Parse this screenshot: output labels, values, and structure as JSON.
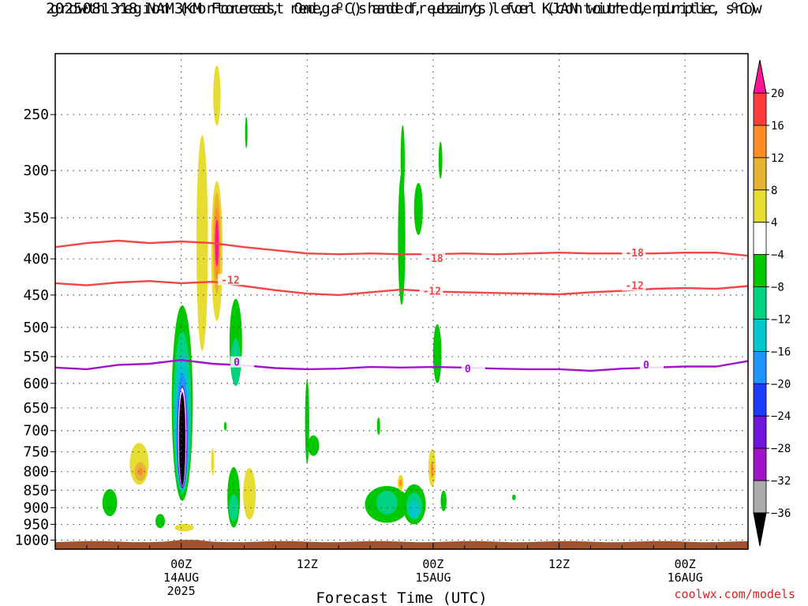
{
  "title_line1": "2025081318 NAM3KM Forecast Omega (shaded, μbar/s) for KJAN with dendritic snow",
  "title_line2": "growth region (contoured, red, ºC) and freezing level (contoured, purple, ºC)",
  "credit": "coolwx.com/models",
  "chart_data": {
    "type": "heatmap",
    "title": "2025081318 NAM3KM Forecast Omega (shaded, μbar/s) for KJAN with dendritic snow growth region (contoured, red, ºC) and freezing level (contoured, purple, ºC)",
    "xlabel": "Forecast Time (UTC)",
    "ylabel": "",
    "x_unit": "hours from 2025-08-13 18Z",
    "xlim": [
      -6,
      60
    ],
    "ylim_hPa": [
      1030,
      205
    ],
    "y_scale": "log",
    "grid": true,
    "x_ticks": [
      {
        "x": 6,
        "lines": [
          "00Z",
          "14AUG",
          "2025"
        ]
      },
      {
        "x": 18,
        "lines": [
          "12Z"
        ]
      },
      {
        "x": 30,
        "lines": [
          "00Z",
          "15AUG"
        ]
      },
      {
        "x": 42,
        "lines": [
          "12Z"
        ]
      },
      {
        "x": 54,
        "lines": [
          "00Z",
          "16AUG"
        ]
      }
    ],
    "y_ticks": [
      250,
      300,
      350,
      400,
      450,
      500,
      550,
      600,
      650,
      700,
      750,
      800,
      850,
      900,
      950,
      1000
    ],
    "colorbar": {
      "labels": [
        "20",
        "16",
        "12",
        "8",
        "4",
        "−4",
        "−8",
        "−12",
        "−16",
        "−20",
        "−24",
        "−28",
        "−32",
        "−36"
      ],
      "colors": [
        "#ff1493",
        "#ff3c3c",
        "#ff8c28",
        "#e6b432",
        "#e6dc32",
        "#ffffff",
        "#00c800",
        "#00d282",
        "#00c8c8",
        "#1e96ff",
        "#1e3cff",
        "#6e14dc",
        "#a014c8",
        "#aaaaaa",
        "#000000"
      ],
      "extend": "both"
    },
    "contours": [
      {
        "name": "-18",
        "color": "#f04646",
        "x": [
          -6,
          -3,
          0,
          3,
          6,
          9,
          12,
          15,
          18,
          21,
          24,
          27,
          30,
          33,
          36,
          39,
          42,
          45,
          48,
          51,
          54,
          57,
          60
        ],
        "p": [
          385,
          380,
          377,
          380,
          378,
          380,
          385,
          389,
          393,
          394,
          393,
          394,
          394,
          393,
          394,
          393,
          392,
          393,
          393,
          393,
          392,
          392,
          396
        ],
        "labels": [
          {
            "x": 29.2,
            "p": 400
          },
          {
            "x": 48.3,
            "p": 393
          }
        ]
      },
      {
        "name": "-12",
        "color": "#f04646",
        "x": [
          -6,
          -3,
          0,
          3,
          6,
          9,
          12,
          15,
          18,
          21,
          24,
          27,
          30,
          33,
          36,
          39,
          42,
          45,
          48,
          51,
          54,
          57,
          60
        ],
        "p": [
          433,
          436,
          432,
          430,
          433,
          431,
          437,
          443,
          448,
          450,
          446,
          442,
          445,
          446,
          447,
          448,
          449,
          446,
          444,
          441,
          440,
          441,
          437
        ],
        "labels": [
          {
            "x": 9.8,
            "p": 429
          },
          {
            "x": 29.0,
            "p": 445
          },
          {
            "x": 48.3,
            "p": 437
          }
        ]
      },
      {
        "name": "0",
        "color": "#a014c8",
        "x": [
          -6,
          -3,
          0,
          3,
          6,
          9,
          12,
          15,
          18,
          21,
          24,
          27,
          30,
          33,
          36,
          39,
          42,
          45,
          48,
          51,
          54,
          57,
          60
        ],
        "p": [
          570,
          573,
          565,
          563,
          556,
          563,
          566,
          571,
          573,
          572,
          569,
          570,
          569,
          570,
          572,
          573,
          573,
          576,
          572,
          570,
          568,
          568,
          558
        ],
        "labels": [
          {
            "x": 11.0,
            "p": 561
          },
          {
            "x": 33.0,
            "p": 573
          },
          {
            "x": 50.0,
            "p": 566
          }
        ]
      }
    ],
    "blobs": [
      {
        "x": 2.0,
        "px": 780,
        "rx": 0.9,
        "ry": 55,
        "fill": "#e6dc32"
      },
      {
        "x": 2.1,
        "px": 800,
        "rx": 0.55,
        "ry": 25,
        "fill": "#e6b432"
      },
      {
        "x": 2.1,
        "px": 800,
        "rx": 0.25,
        "ry": 10,
        "fill": "#ff8c28"
      },
      {
        "x": -0.8,
        "px": 885,
        "rx": 0.7,
        "ry": 40,
        "fill": "#00c800"
      },
      {
        "x": 4.0,
        "px": 940,
        "rx": 0.45,
        "ry": 22,
        "fill": "#00c800"
      },
      {
        "x": 6.3,
        "px": 960,
        "rx": 0.9,
        "ry": 12,
        "fill": "#e6dc32"
      },
      {
        "x": 6.1,
        "px": 640,
        "rx": 1.0,
        "ry": 240,
        "fill": "#00c800"
      },
      {
        "x": 6.1,
        "px": 660,
        "rx": 0.85,
        "ry": 200,
        "fill": "#00d282"
      },
      {
        "x": 6.1,
        "px": 680,
        "rx": 0.7,
        "ry": 170,
        "fill": "#00c8c8"
      },
      {
        "x": 6.1,
        "px": 700,
        "rx": 0.58,
        "ry": 145,
        "fill": "#1e96ff"
      },
      {
        "x": 6.1,
        "px": 715,
        "rx": 0.48,
        "ry": 130,
        "fill": "#6e14dc"
      },
      {
        "x": 6.1,
        "px": 715,
        "rx": 0.4,
        "ry": 125,
        "fill": "#ffffff"
      },
      {
        "x": 6.1,
        "px": 720,
        "rx": 0.33,
        "ry": 120,
        "fill": "#a014c8"
      },
      {
        "x": 6.1,
        "px": 720,
        "rx": 0.28,
        "ry": 115,
        "fill": "#000000"
      },
      {
        "x": 8.0,
        "px": 380,
        "rx": 0.55,
        "ry": 160,
        "fill": "#e6dc32"
      },
      {
        "x": 9.4,
        "px": 235,
        "rx": 0.35,
        "ry": 24,
        "fill": "#e6dc32"
      },
      {
        "x": 9.4,
        "px": 390,
        "rx": 0.55,
        "ry": 100,
        "fill": "#e6dc32"
      },
      {
        "x": 9.4,
        "px": 380,
        "rx": 0.38,
        "ry": 68,
        "fill": "#e6b432"
      },
      {
        "x": 9.4,
        "px": 380,
        "rx": 0.27,
        "ry": 48,
        "fill": "#ff8c28"
      },
      {
        "x": 9.4,
        "px": 380,
        "rx": 0.17,
        "ry": 30,
        "fill": "#ff1493"
      },
      {
        "x": 9.0,
        "px": 775,
        "rx": 0.15,
        "ry": 35,
        "fill": "#e6dc32"
      },
      {
        "x": 10.2,
        "px": 690,
        "rx": 0.12,
        "ry": 10,
        "fill": "#00c800"
      },
      {
        "x": 11.2,
        "px": 525,
        "rx": 0.6,
        "ry": 80,
        "fill": "#00c800"
      },
      {
        "x": 11.2,
        "px": 560,
        "rx": 0.45,
        "ry": 45,
        "fill": "#00d282"
      },
      {
        "x": 11.0,
        "px": 870,
        "rx": 0.6,
        "ry": 90,
        "fill": "#00c800"
      },
      {
        "x": 11.0,
        "px": 900,
        "rx": 0.45,
        "ry": 40,
        "fill": "#00d282"
      },
      {
        "x": 12.5,
        "px": 860,
        "rx": 0.6,
        "ry": 75,
        "fill": "#e6dc32"
      },
      {
        "x": 12.2,
        "px": 265,
        "rx": 0.12,
        "ry": 14,
        "fill": "#00c800"
      },
      {
        "x": 18.0,
        "px": 680,
        "rx": 0.2,
        "ry": 100,
        "fill": "#00c800"
      },
      {
        "x": 18.6,
        "px": 735,
        "rx": 0.55,
        "ry": 25,
        "fill": "#00c800"
      },
      {
        "x": 24.8,
        "px": 690,
        "rx": 0.15,
        "ry": 20,
        "fill": "#00c800"
      },
      {
        "x": 25.6,
        "px": 890,
        "rx": 2.1,
        "ry": 55,
        "fill": "#00c800"
      },
      {
        "x": 25.6,
        "px": 885,
        "rx": 1.0,
        "ry": 35,
        "fill": "#00d282"
      },
      {
        "x": 26.9,
        "px": 830,
        "rx": 0.28,
        "ry": 22,
        "fill": "#e6dc32"
      },
      {
        "x": 26.9,
        "px": 830,
        "rx": 0.13,
        "ry": 10,
        "fill": "#ff8c28"
      },
      {
        "x": 28.2,
        "px": 890,
        "rx": 1.1,
        "ry": 60,
        "fill": "#00c800"
      },
      {
        "x": 28.2,
        "px": 895,
        "rx": 0.75,
        "ry": 40,
        "fill": "#00d282"
      },
      {
        "x": 28.2,
        "px": 905,
        "rx": 0.5,
        "ry": 25,
        "fill": "#00c8c8"
      },
      {
        "x": 27.0,
        "px": 375,
        "rx": 0.35,
        "ry": 90,
        "fill": "#00c800"
      },
      {
        "x": 27.1,
        "px": 290,
        "rx": 0.2,
        "ry": 35,
        "fill": "#00c800"
      },
      {
        "x": 28.6,
        "px": 340,
        "rx": 0.42,
        "ry": 30,
        "fill": "#00c800"
      },
      {
        "x": 29.9,
        "px": 790,
        "rx": 0.35,
        "ry": 50,
        "fill": "#e6dc32"
      },
      {
        "x": 29.9,
        "px": 795,
        "rx": 0.12,
        "ry": 22,
        "fill": "#ff8c28"
      },
      {
        "x": 30.4,
        "px": 545,
        "rx": 0.4,
        "ry": 55,
        "fill": "#00c800"
      },
      {
        "x": 30.7,
        "px": 290,
        "rx": 0.18,
        "ry": 18,
        "fill": "#00c800"
      },
      {
        "x": 31.0,
        "px": 880,
        "rx": 0.28,
        "ry": 30,
        "fill": "#00c800"
      },
      {
        "x": 37.7,
        "px": 870,
        "rx": 0.18,
        "ry": 8,
        "fill": "#00c800"
      }
    ],
    "ground": {
      "top_hPa": 1005,
      "fill": "#a0522d"
    }
  }
}
